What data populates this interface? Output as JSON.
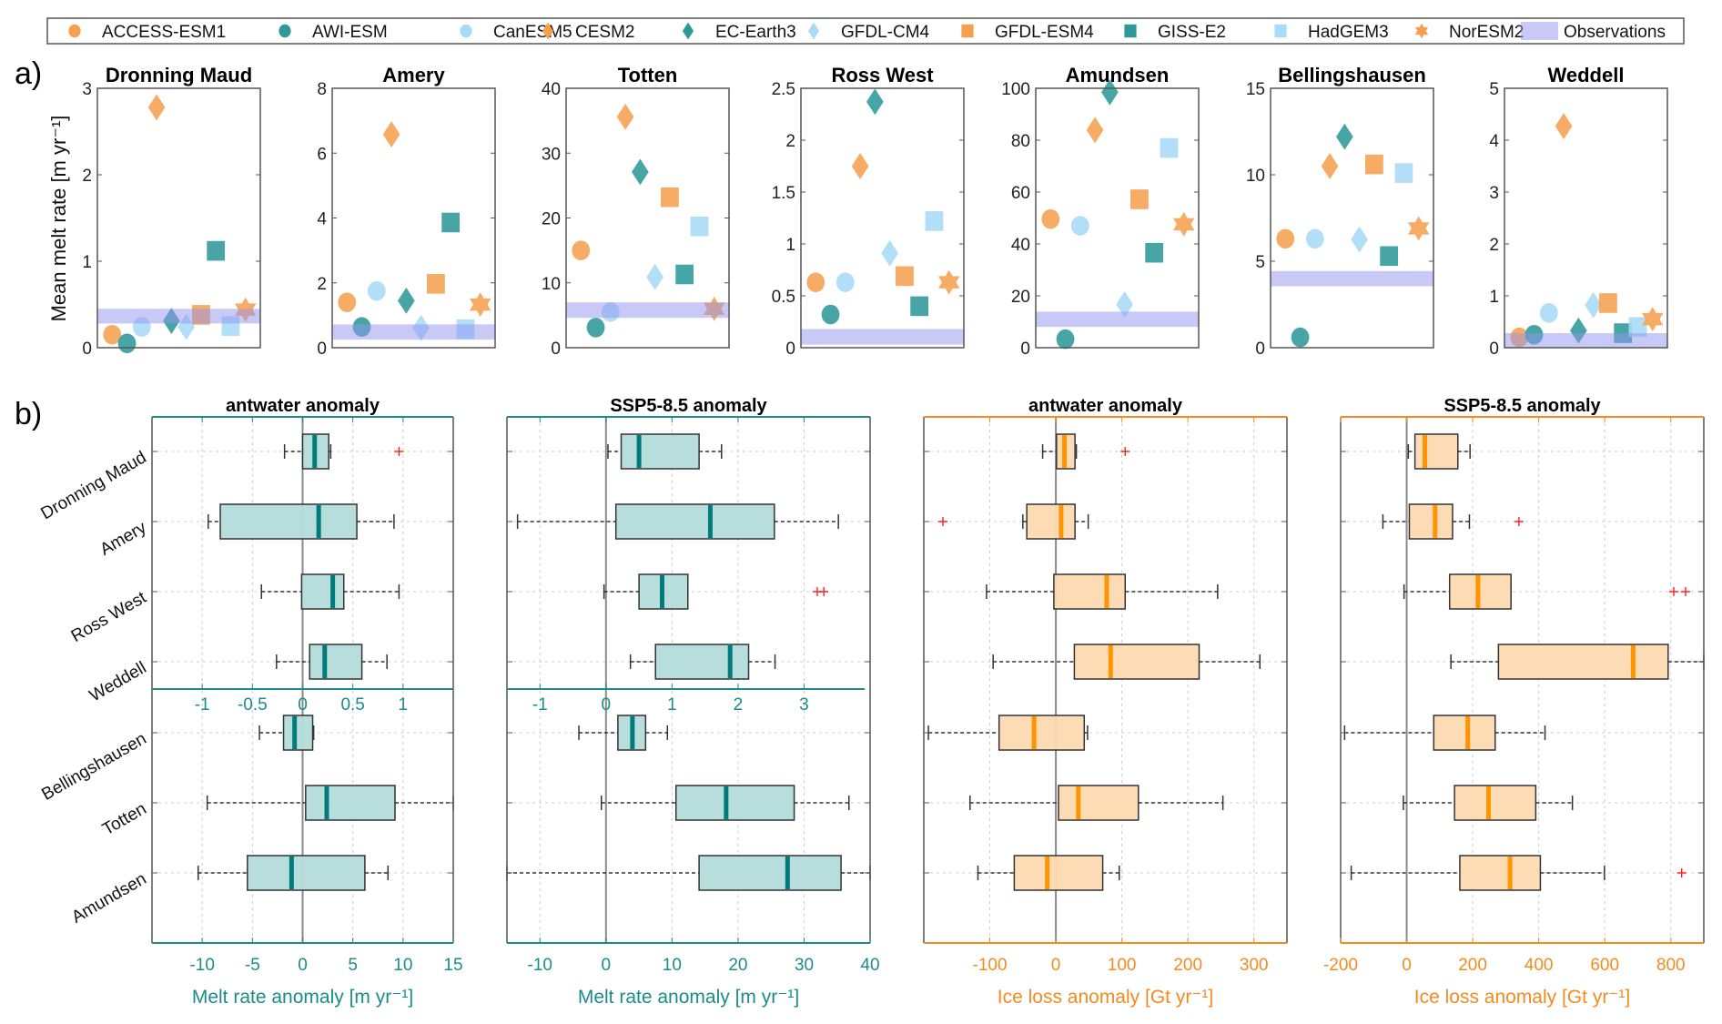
{
  "legend": {
    "items": [
      {
        "label": "ACCESS-ESM1",
        "marker": "circle",
        "color": "#f5a04f"
      },
      {
        "label": "AWI-ESM",
        "marker": "circle",
        "color": "#2e9a98"
      },
      {
        "label": "CanESM5",
        "marker": "circle",
        "color": "#a9daf7"
      },
      {
        "label": "CESM2",
        "marker": "diamond",
        "color": "#f5a04f"
      },
      {
        "label": "EC-Earth3",
        "marker": "diamond",
        "color": "#2e9a98"
      },
      {
        "label": "GFDL-CM4",
        "marker": "diamond",
        "color": "#a9daf7"
      },
      {
        "label": "GFDL-ESM4",
        "marker": "square",
        "color": "#f5a04f"
      },
      {
        "label": "GISS-E2",
        "marker": "square",
        "color": "#2e9a98"
      },
      {
        "label": "HadGEM3",
        "marker": "square",
        "color": "#a9daf7"
      },
      {
        "label": "NorESM2",
        "marker": "hexagram",
        "color": "#f5a04f"
      }
    ],
    "observations_label": "Observations",
    "observations_color": "#9494f2"
  },
  "chart_data": [
    {
      "type": "scatter",
      "label": "a)",
      "ylabel": "Mean melt rate [m yr⁻¹]",
      "series_order": [
        "ACCESS-ESM1",
        "AWI-ESM",
        "CanESM5",
        "CESM2",
        "EC-Earth3",
        "GFDL-CM4",
        "GFDL-ESM4",
        "GISS-E2",
        "HadGEM3",
        "NorESM2"
      ],
      "regions": [
        {
          "title": "Dronning Maud",
          "ylim": [
            0,
            3
          ],
          "yticks": [
            0,
            1,
            2,
            3
          ],
          "values": [
            0.15,
            0.05,
            0.24,
            2.78,
            0.31,
            0.24,
            0.38,
            1.12,
            0.25,
            0.44
          ],
          "observations": [
            0.28,
            0.45
          ]
        },
        {
          "title": "Amery",
          "ylim": [
            0,
            8
          ],
          "yticks": [
            0,
            2,
            4,
            6,
            8
          ],
          "values": [
            1.4,
            0.64,
            1.75,
            6.58,
            1.45,
            0.61,
            1.97,
            3.86,
            0.57,
            1.33
          ],
          "observations": [
            0.25,
            0.72
          ]
        },
        {
          "title": "Totten",
          "ylim": [
            0,
            40
          ],
          "yticks": [
            0,
            10,
            20,
            30,
            40
          ],
          "values": [
            15.0,
            3.1,
            5.5,
            35.6,
            27.1,
            10.9,
            23.2,
            11.3,
            18.7,
            6.0
          ],
          "observations": [
            4.6,
            7.0
          ]
        },
        {
          "title": "Ross West",
          "ylim": [
            0,
            2.5
          ],
          "yticks": [
            0,
            0.5,
            1,
            1.5,
            2,
            2.5
          ],
          "values": [
            0.63,
            0.32,
            0.63,
            1.75,
            2.37,
            0.91,
            0.69,
            0.4,
            1.22,
            0.63
          ],
          "observations": [
            0.03,
            0.18
          ]
        },
        {
          "title": "Amundsen",
          "ylim": [
            0,
            100
          ],
          "yticks": [
            0,
            20,
            40,
            60,
            80,
            100
          ],
          "values": [
            49.6,
            3.3,
            47.0,
            83.9,
            98.5,
            16.7,
            57.2,
            36.6,
            77.0,
            47.6
          ],
          "observations": [
            8.0,
            13.9
          ]
        },
        {
          "title": "Bellingshausen",
          "ylim": [
            0,
            15
          ],
          "yticks": [
            0,
            5,
            10,
            15
          ],
          "values": [
            6.3,
            0.6,
            6.3,
            10.5,
            12.2,
            6.26,
            10.6,
            5.3,
            10.1,
            6.9
          ],
          "observations": [
            3.55,
            4.43
          ]
        },
        {
          "title": "Weddell",
          "ylim": [
            0,
            5
          ],
          "yticks": [
            0,
            1,
            2,
            3,
            4,
            5
          ],
          "values": [
            0.2,
            0.25,
            0.67,
            4.27,
            0.33,
            0.82,
            0.86,
            0.28,
            0.4,
            0.55
          ],
          "observations": [
            0,
            0.28
          ]
        }
      ]
    },
    {
      "type": "box",
      "label": "b)",
      "row_labels": [
        "Dronning Maud",
        "Amery",
        "Ross West",
        "Weddell",
        "Bellingshausen",
        "Totten",
        "Amundsen"
      ],
      "panels": [
        {
          "title": "antwater anomaly",
          "xlabel": "Melt rate anomaly [m yr⁻¹]",
          "xlim": [
            -15,
            15
          ],
          "xticks": [
            -10,
            -5,
            0,
            5,
            10,
            15
          ],
          "top_rows_xlim": [
            -1.5,
            1.5
          ],
          "top_rows_xticks": [
            -1,
            -0.5,
            0,
            0.5,
            1
          ],
          "axis_color": "#1b8c8a",
          "box_fill": "#b3dcdb",
          "median_color": "#007b7a",
          "boxes": [
            {
              "lo": -0.18,
              "q1": 0.0,
              "med": 0.12,
              "q3": 0.26,
              "hi": 0.28,
              "outliers": [
                0.96
              ]
            },
            {
              "lo": -0.94,
              "q1": -0.82,
              "med": 0.16,
              "q3": 0.54,
              "hi": 0.91,
              "outliers": []
            },
            {
              "lo": -0.41,
              "q1": -0.01,
              "med": 0.3,
              "q3": 0.41,
              "hi": 0.96,
              "outliers": []
            },
            {
              "lo": -0.26,
              "q1": 0.07,
              "med": 0.22,
              "q3": 0.59,
              "hi": 0.84,
              "outliers": []
            },
            {
              "lo": -4.3,
              "q1": -1.9,
              "med": -0.8,
              "q3": 1.0,
              "hi": 1.1,
              "outliers": []
            },
            {
              "lo": -9.5,
              "q1": 0.3,
              "med": 2.4,
              "q3": 9.2,
              "hi": 15,
              "outliers": []
            },
            {
              "lo": -10.4,
              "q1": -5.5,
              "med": -1.1,
              "q3": 6.2,
              "hi": 8.5,
              "outliers": []
            }
          ]
        },
        {
          "title": "SSP5-8.5 anomaly",
          "xlabel": "Melt rate anomaly [m yr⁻¹]",
          "xlim": [
            -15,
            40
          ],
          "xticks": [
            -10,
            0,
            10,
            20,
            30,
            40
          ],
          "top_rows_xlim": [
            -1.5,
            4
          ],
          "top_rows_xticks": [
            -1,
            0,
            1,
            2,
            3
          ],
          "axis_color": "#1b8c8a",
          "box_fill": "#b3dcdb",
          "median_color": "#007b7a",
          "boxes": [
            {
              "lo": 0.03,
              "q1": 0.23,
              "med": 0.5,
              "q3": 1.41,
              "hi": 1.75,
              "outliers": []
            },
            {
              "lo": -1.34,
              "q1": 0.15,
              "med": 1.58,
              "q3": 2.55,
              "hi": 3.52,
              "outliers": []
            },
            {
              "lo": -0.03,
              "q1": 0.5,
              "med": 0.85,
              "q3": 1.24,
              "hi": 1.24,
              "outliers": [
                3.2,
                3.3
              ]
            },
            {
              "lo": 0.37,
              "q1": 0.75,
              "med": 1.88,
              "q3": 2.16,
              "hi": 2.56,
              "outliers": []
            },
            {
              "lo": -4.1,
              "q1": 1.8,
              "med": 4.0,
              "q3": 6.0,
              "hi": 9.3,
              "outliers": []
            },
            {
              "lo": -0.7,
              "q1": 10.6,
              "med": 18.2,
              "q3": 28.5,
              "hi": 36.8,
              "outliers": []
            },
            {
              "lo": -15,
              "q1": 14.1,
              "med": 27.5,
              "q3": 35.6,
              "hi": 40,
              "outliers": []
            }
          ]
        },
        {
          "title": "antwater anomaly",
          "xlabel": "Ice loss anomaly [Gt yr⁻¹]",
          "xlim": [
            -200,
            350
          ],
          "xticks": [
            -100,
            0,
            100,
            200,
            300
          ],
          "axis_color": "#f58a1f",
          "box_fill": "#fdd9b0",
          "median_color": "#ff9400",
          "boxes": [
            {
              "lo": -20,
              "q1": 1,
              "med": 13,
              "q3": 29,
              "hi": 31,
              "outliers": [
                105
              ]
            },
            {
              "lo": -50,
              "q1": -44,
              "med": 8,
              "q3": 29,
              "hi": 49,
              "outliers": [
                -171
              ]
            },
            {
              "lo": -105,
              "q1": -3,
              "med": 77,
              "q3": 105,
              "hi": 245,
              "outliers": []
            },
            {
              "lo": -95,
              "q1": 28,
              "med": 83,
              "q3": 217,
              "hi": 309,
              "outliers": []
            },
            {
              "lo": -193,
              "q1": -86,
              "med": -33,
              "q3": 43,
              "hi": 48,
              "outliers": []
            },
            {
              "lo": -130,
              "q1": 4,
              "med": 34,
              "q3": 125,
              "hi": 253,
              "outliers": []
            },
            {
              "lo": -118,
              "q1": -63,
              "med": -13,
              "q3": 71,
              "hi": 96,
              "outliers": []
            }
          ]
        },
        {
          "title": "SSP5-8.5 anomaly",
          "xlabel": "Ice loss anomaly [Gt yr⁻¹]",
          "xlim": [
            -200,
            900
          ],
          "xticks": [
            -200,
            0,
            200,
            400,
            600,
            800
          ],
          "axis_color": "#f58a1f",
          "box_fill": "#fdd9b0",
          "median_color": "#ff9400",
          "boxes": [
            {
              "lo": 5,
              "q1": 25,
              "med": 55,
              "q3": 155,
              "hi": 192,
              "outliers": []
            },
            {
              "lo": -72,
              "q1": 8,
              "med": 86,
              "q3": 139,
              "hi": 190,
              "outliers": [
                340
              ]
            },
            {
              "lo": -8,
              "q1": 130,
              "med": 216,
              "q3": 316,
              "hi": 316,
              "outliers": [
                809,
                845
              ]
            },
            {
              "lo": 134,
              "q1": 278,
              "med": 686,
              "q3": 792,
              "hi": 900,
              "outliers": []
            },
            {
              "lo": -188,
              "q1": 82,
              "med": 185,
              "q3": 268,
              "hi": 419,
              "outliers": []
            },
            {
              "lo": -10,
              "q1": 145,
              "med": 248,
              "q3": 391,
              "hi": 502,
              "outliers": []
            },
            {
              "lo": -168,
              "q1": 161,
              "med": 313,
              "q3": 405,
              "hi": 599,
              "outliers": [
                833
              ]
            }
          ]
        }
      ]
    }
  ]
}
